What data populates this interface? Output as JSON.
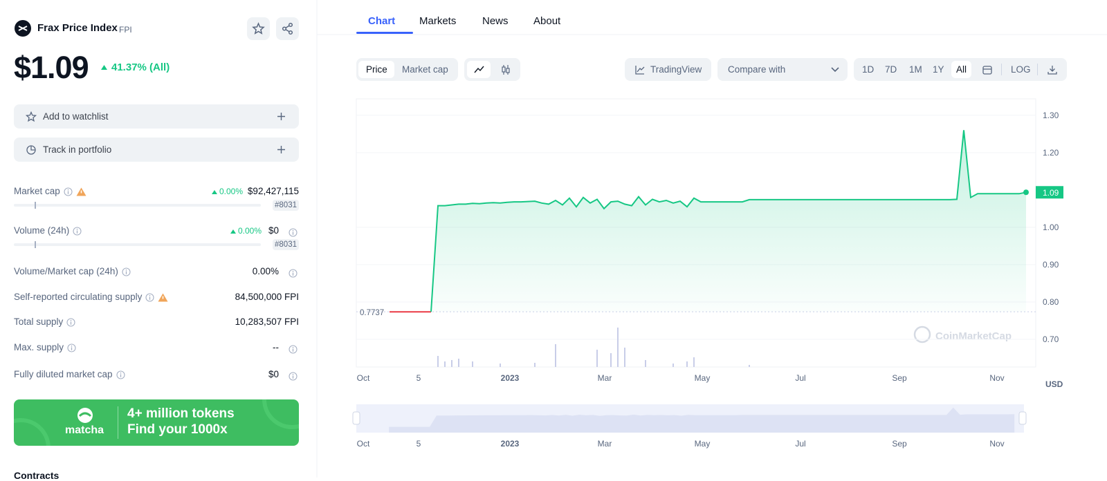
{
  "header": {
    "name": "Frax Price Index",
    "symbol": "FPI",
    "price": "$1.09",
    "change": "41.37% (All)"
  },
  "actions": [
    "Add to watchlist",
    "Track in portfolio"
  ],
  "stats": [
    {
      "label": "Market cap",
      "change": "0.00%",
      "value": "$92,427,115",
      "rank": "#8031"
    },
    {
      "label": "Volume (24h)",
      "change": "0.00%",
      "value": "$0",
      "rank": "#8031"
    },
    {
      "label": "Volume/Market cap (24h)",
      "value": "0.00%"
    },
    {
      "label": "Self-reported circulating supply",
      "value": "84,500,000 FPI"
    },
    {
      "label": "Total supply",
      "value": "10,283,507 FPI"
    },
    {
      "label": "Max. supply",
      "value": "--"
    },
    {
      "label": "Fully diluted market cap",
      "value": "$0"
    }
  ],
  "banner": {
    "brand": "matcha",
    "line1": "4+ million tokens",
    "line2": "Find your 1000x"
  },
  "section": "Contracts",
  "tabs": [
    "Chart",
    "Markets",
    "News",
    "About"
  ],
  "toolbar": {
    "modes": [
      "Price",
      "Market cap"
    ],
    "tradingview": "TradingView",
    "compare": "Compare with",
    "ranges": [
      "1D",
      "7D",
      "1M",
      "1Y",
      "All"
    ],
    "log": "LOG"
  },
  "chart_data": {
    "type": "line",
    "color": "#16c784",
    "start_color": "#ea3943",
    "values": [
      0.7737,
      0.7737,
      0.7737,
      0.7737,
      0.7737,
      0.7737,
      0.7737,
      1.058,
      1.058,
      1.06,
      1.062,
      1.062,
      1.064,
      1.063,
      1.065,
      1.066,
      1.065,
      1.067,
      1.068,
      1.068,
      1.069,
      1.07,
      1.065,
      1.062,
      1.072,
      1.06,
      1.078,
      1.055,
      1.08,
      1.065,
      1.075,
      1.05,
      1.068,
      1.07,
      1.062,
      1.058,
      1.082,
      1.06,
      1.075,
      1.068,
      1.072,
      1.065,
      1.07,
      1.055,
      1.078,
      1.068,
      1.068,
      1.068,
      1.068,
      1.068,
      1.068,
      1.068,
      1.074,
      1.074,
      1.074,
      1.074,
      1.074,
      1.074,
      1.074,
      1.074,
      1.074,
      1.074,
      1.074,
      1.074,
      1.074,
      1.074,
      1.074,
      1.074,
      1.074,
      1.074,
      1.074,
      1.074,
      1.074,
      1.074,
      1.074,
      1.074,
      1.074,
      1.074,
      1.074,
      1.074,
      1.074,
      1.074,
      1.075,
      1.26,
      1.08,
      1.09,
      1.09,
      1.09,
      1.09,
      1.09,
      1.09,
      1.09,
      1.0937
    ],
    "last_label": "1.09",
    "volume": [
      0,
      0,
      0,
      0,
      0,
      0,
      0,
      16,
      8,
      10,
      12,
      0,
      8,
      0,
      0,
      0,
      5,
      0,
      0,
      0,
      0,
      6,
      0,
      0,
      33,
      0,
      0,
      0,
      0,
      0,
      25,
      0,
      20,
      57,
      28,
      0,
      0,
      10,
      0,
      0,
      0,
      5,
      0,
      8,
      14,
      0,
      0,
      0,
      0,
      0,
      0,
      0,
      3,
      0,
      0,
      0,
      0,
      0,
      0,
      0,
      0,
      0,
      0,
      0,
      0,
      0,
      0,
      0,
      0,
      0,
      0,
      0,
      0,
      0,
      0,
      0,
      0,
      0,
      0,
      0,
      0,
      0,
      0,
      0,
      0,
      0,
      0,
      0,
      0,
      0,
      0,
      0,
      0
    ],
    "ylim": [
      0.626,
      1.344
    ],
    "yticks": [
      {
        "value": 0.7,
        "label": "0.70"
      },
      {
        "value": 0.8,
        "label": "0.80"
      },
      {
        "value": 0.9,
        "label": "0.90"
      },
      {
        "value": 1,
        "label": "1.00"
      },
      {
        "value": 1.2,
        "label": "1.20"
      },
      {
        "value": 1.3,
        "label": "1.30"
      }
    ],
    "x_labels": [
      "Oct",
      "5",
      "2023",
      "Mar",
      "May",
      "Jul",
      "Sep",
      "Nov"
    ],
    "grid": true,
    "currency": "USD",
    "watermark": "CoinMarketCap"
  }
}
